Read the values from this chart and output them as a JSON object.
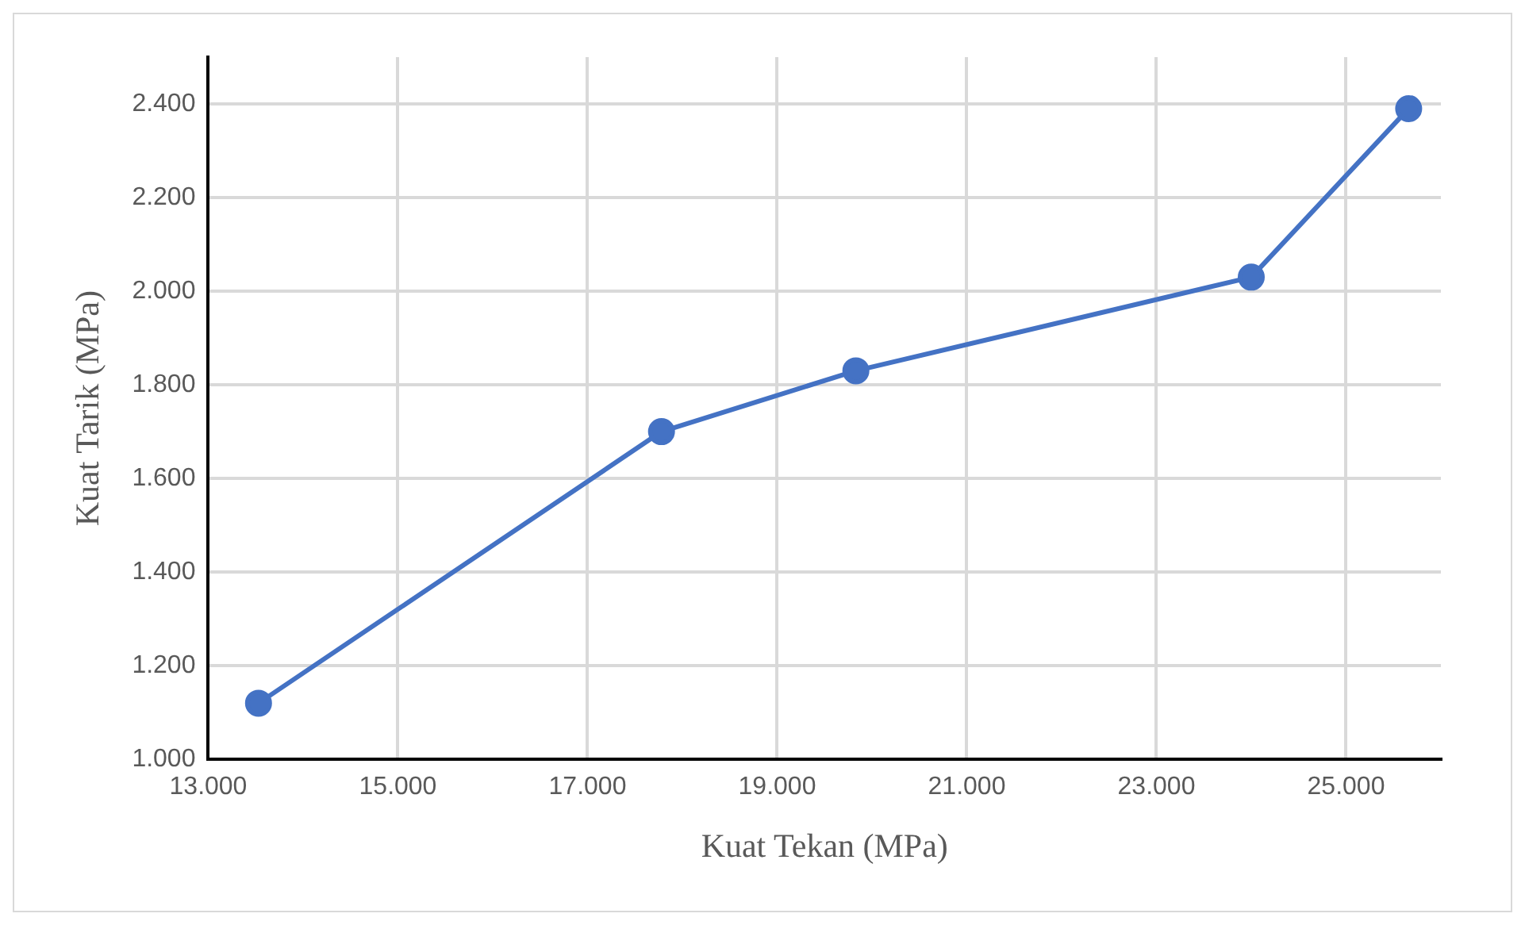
{
  "chart_data": {
    "type": "line",
    "xlabel": "Kuat Tekan (MPa)",
    "ylabel": "Kuat Tarik (MPa)",
    "x": [
      13.53,
      17.78,
      19.83,
      24.0,
      25.66
    ],
    "series": [
      {
        "color": "#4472c4",
        "values": [
          1.12,
          1.7,
          1.83,
          2.03,
          2.39
        ]
      }
    ],
    "xlim": [
      13,
      26
    ],
    "xticks": [
      {
        "value": 13,
        "label": "13.000"
      },
      {
        "value": 15,
        "label": "15.000"
      },
      {
        "value": 17,
        "label": "17.000"
      },
      {
        "value": 19,
        "label": "19.000"
      },
      {
        "value": 21,
        "label": "21.000"
      },
      {
        "value": 23,
        "label": "23.000"
      },
      {
        "value": 25,
        "label": "25.000"
      }
    ],
    "ylim": [
      1,
      2.5
    ],
    "yticks": [
      {
        "value": 1,
        "label": "1.000"
      },
      {
        "value": 1.2,
        "label": "1.200"
      },
      {
        "value": 1.4,
        "label": "1.400"
      },
      {
        "value": 1.6,
        "label": "1.600"
      },
      {
        "value": 1.8,
        "label": "1.800"
      },
      {
        "value": 2,
        "label": "2.000"
      },
      {
        "value": 2.2,
        "label": "2.200"
      },
      {
        "value": 2.4,
        "label": "2.400"
      }
    ],
    "grid": true,
    "legend": false,
    "marker": "circle",
    "line_style": "solid"
  }
}
